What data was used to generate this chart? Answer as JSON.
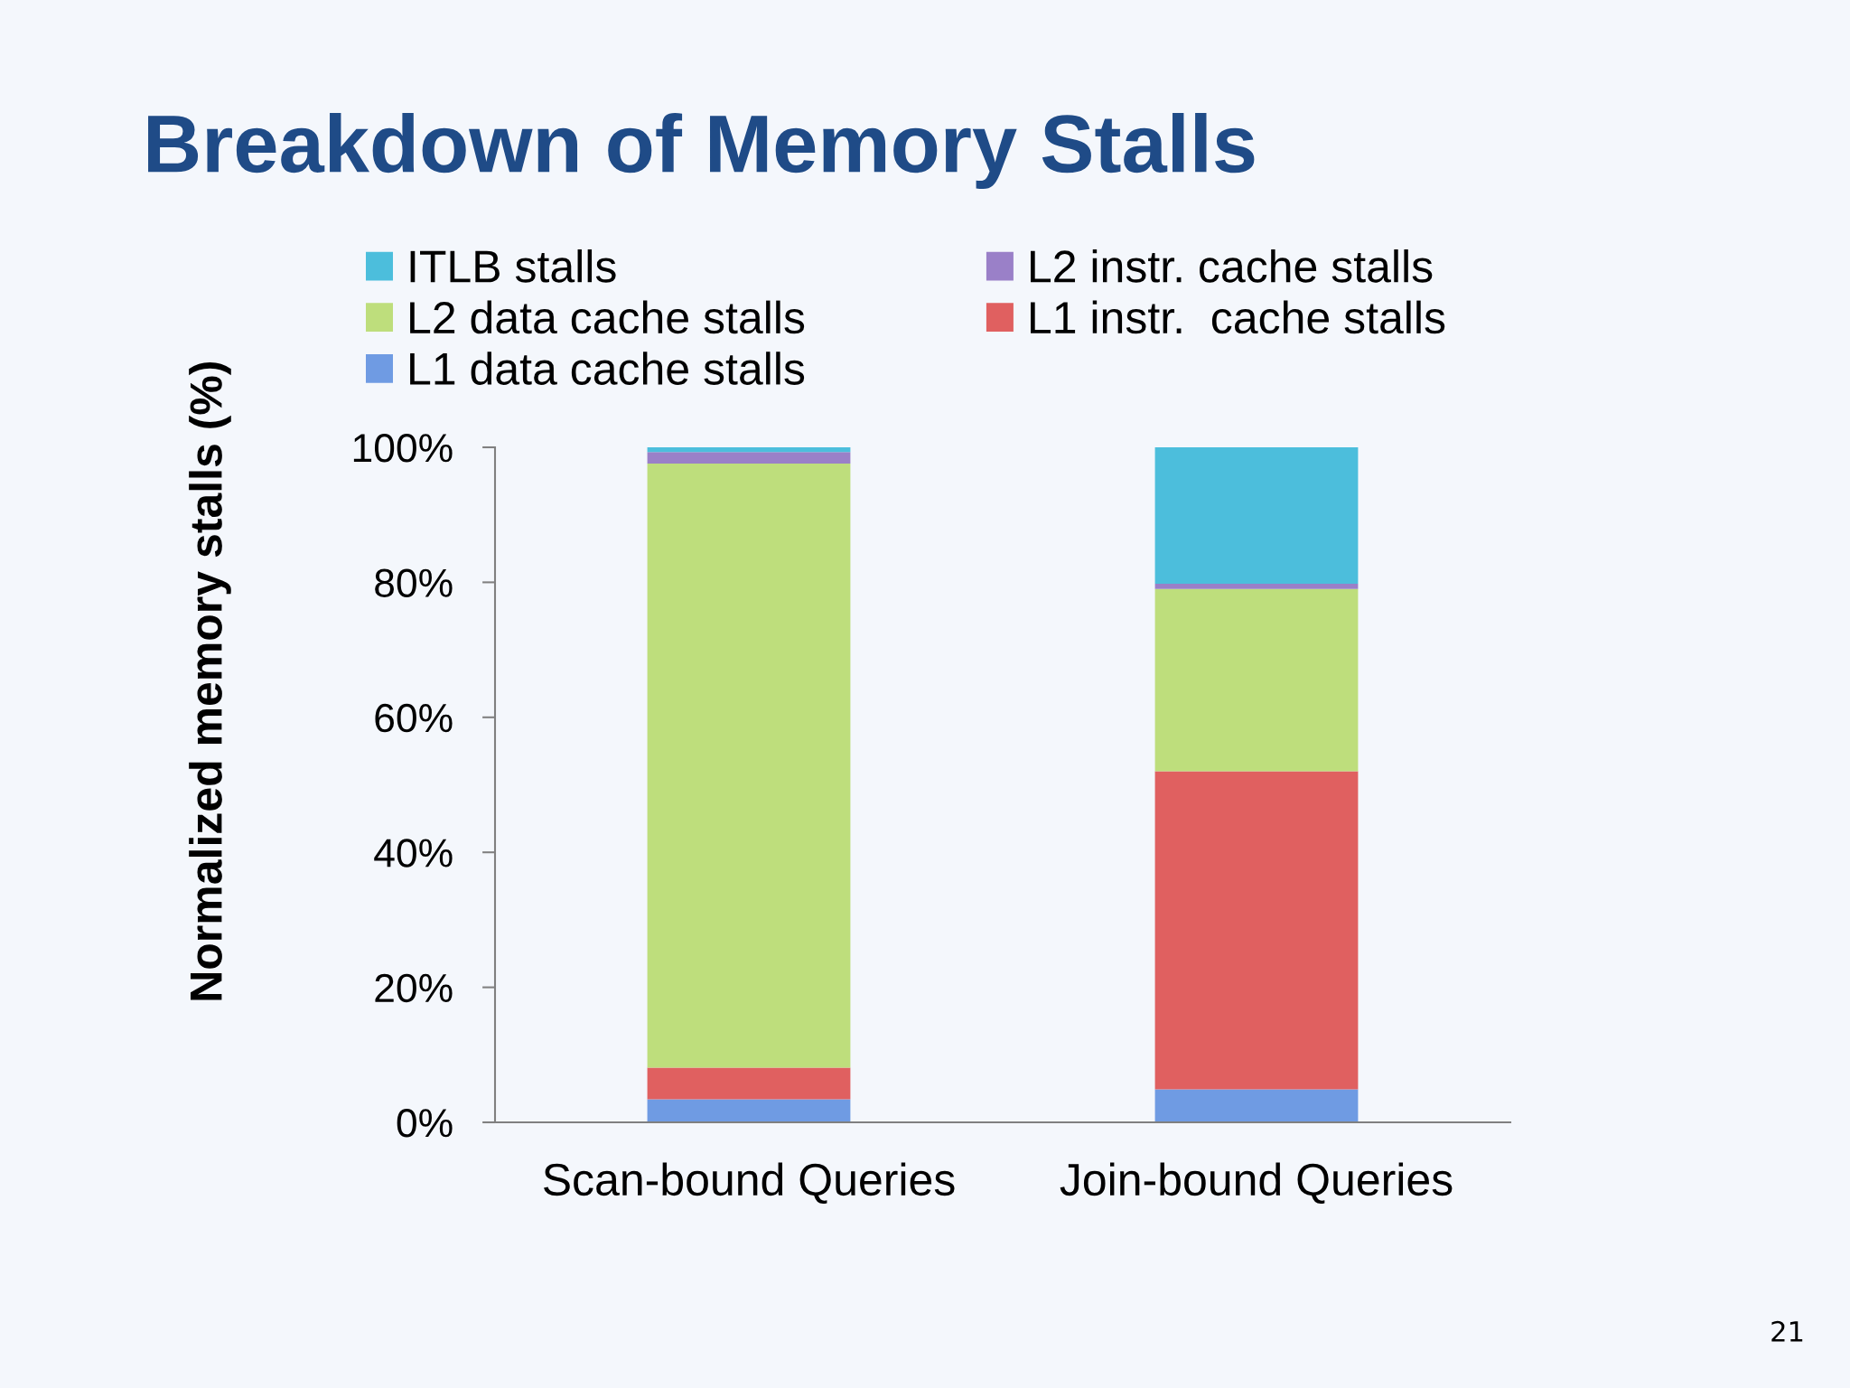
{
  "chart_data": {
    "type": "bar",
    "title": "Breakdown of Memory Stalls",
    "ylabel": "Normalized memory stalls (%)",
    "categories": [
      "Scan-bound Queries",
      "Join-bound Queries"
    ],
    "stacked": true,
    "series": [
      {
        "name": "L1 data cache stalls",
        "color": "#6f9be3",
        "values": [
          3.4,
          4.9
        ]
      },
      {
        "name": "L1 instr.  cache stalls",
        "color": "#e06060",
        "values": [
          4.7,
          47.1
        ]
      },
      {
        "name": "L2 data cache stalls",
        "color": "#bede7c",
        "values": [
          89.5,
          27.0
        ]
      },
      {
        "name": "L2 instr. cache stalls",
        "color": "#9a80c8",
        "values": [
          1.7,
          0.8
        ]
      },
      {
        "name": "ITLB stalls",
        "color": "#4cbedc",
        "values": [
          0.7,
          20.2
        ]
      }
    ],
    "ylim": [
      0,
      100
    ],
    "yticks": [
      {
        "value": 0,
        "label": "0%"
      },
      {
        "value": 20,
        "label": "20%"
      },
      {
        "value": 40,
        "label": "40%"
      },
      {
        "value": 60,
        "label": "60%"
      },
      {
        "value": 80,
        "label": "80%"
      },
      {
        "value": 100,
        "label": "100%"
      }
    ],
    "legend": "top",
    "annotations": [
      "21"
    ]
  }
}
